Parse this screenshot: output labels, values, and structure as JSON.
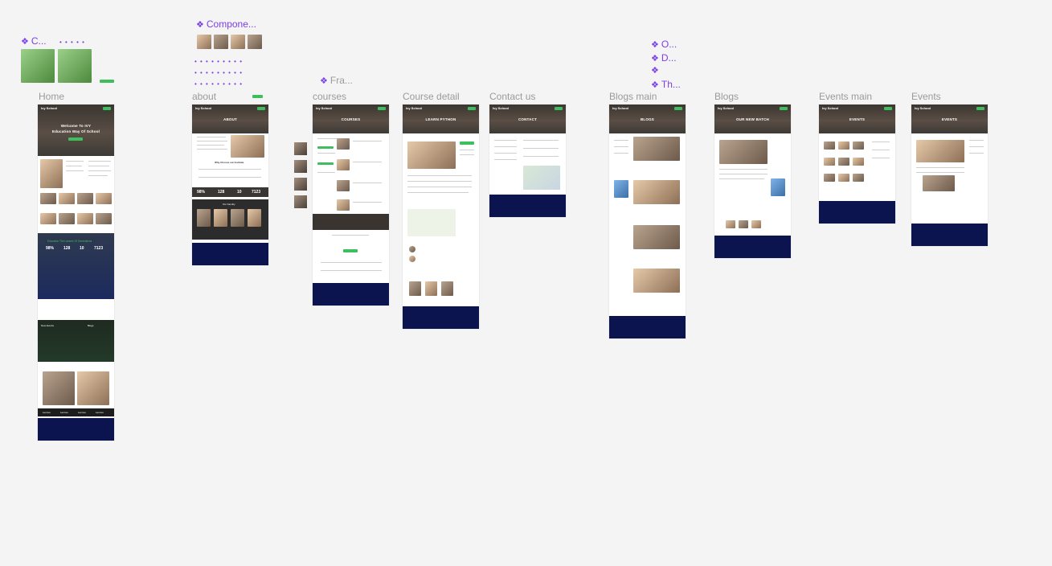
{
  "canvas": {
    "frames": [
      {
        "key": "home",
        "label": "Home"
      },
      {
        "key": "about",
        "label": "about"
      },
      {
        "key": "courses",
        "label": "courses"
      },
      {
        "key": "course_detail",
        "label": "Course detail"
      },
      {
        "key": "contact",
        "label": "Contact us"
      },
      {
        "key": "blogs_main",
        "label": "Blogs main"
      },
      {
        "key": "blogs",
        "label": "Blogs"
      },
      {
        "key": "events_main",
        "label": "Events main"
      },
      {
        "key": "events",
        "label": "Events"
      }
    ],
    "components": {
      "c1": "C...",
      "components": "Compone...",
      "fra": "Fra...",
      "o": "O...",
      "d": "D...",
      "th": "Th..."
    }
  },
  "pages": {
    "home": {
      "hero_title_1": "Welcome To IVY",
      "hero_title_2": "Education Way Of School",
      "stats": [
        "98%",
        "128",
        "10",
        "7123"
      ],
      "band_title": "Education The Lancers Of Generations",
      "new_events": "New Events",
      "blogs": "Blogs",
      "partner": "Lenovo"
    },
    "about": {
      "hero_title": "ABOUT",
      "why_title": "Why Choose our Institute",
      "stats": [
        "98%",
        "128",
        "10",
        "7123"
      ],
      "faculty_title": "Our Faculty"
    },
    "courses": {
      "hero_title": "COURSES"
    },
    "course_detail": {
      "hero_title": "LEARN PYTHON"
    },
    "contact": {
      "hero_title": "CONTACT"
    },
    "blogs_main": {
      "hero_title": "BLOGS"
    },
    "blogs": {
      "hero_title": "OUR NEW BATCH"
    },
    "events_main": {
      "hero_title": "EVENTS"
    },
    "events": {
      "hero_title": "EVENTS"
    },
    "logo_text": "Ivy School"
  }
}
